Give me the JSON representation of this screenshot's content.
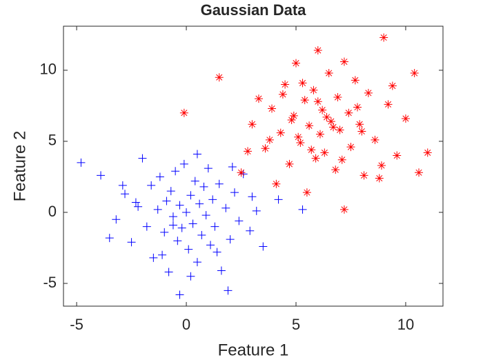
{
  "chart_data": {
    "type": "scatter",
    "title": "Gaussian Data",
    "x_label": "Feature 1",
    "y_label": "Feature 2",
    "xlim": [
      -5.6,
      11.7
    ],
    "ylim": [
      -6.6,
      13.1
    ],
    "xticks": [
      -5,
      0,
      5,
      10
    ],
    "yticks": [
      -5,
      0,
      5,
      10
    ],
    "grid": false,
    "series": [
      {
        "color": "#0000ff",
        "marker": "+",
        "x": [
          -4.8,
          -3.9,
          -3.2,
          -2.8,
          -2.5,
          -2.2,
          -2.0,
          -1.8,
          -1.6,
          -1.5,
          -1.3,
          -1.2,
          -1.0,
          -0.9,
          -0.8,
          -0.7,
          -0.6,
          -0.5,
          -0.4,
          -0.3,
          -0.2,
          -0.1,
          0.0,
          0.1,
          0.2,
          0.3,
          0.4,
          0.5,
          0.6,
          0.7,
          0.8,
          0.9,
          1.0,
          1.1,
          1.2,
          1.3,
          1.5,
          1.6,
          1.8,
          2.0,
          2.2,
          2.4,
          2.6,
          2.9,
          3.2,
          3.5,
          4.2,
          5.3,
          -0.3,
          1.9,
          -3.5,
          -2.9,
          -1.1,
          0.5,
          2.1,
          -0.6,
          1.4,
          -2.3,
          0.2,
          3.0
        ],
        "values": [
          3.5,
          2.6,
          -0.5,
          1.3,
          -2.1,
          0.4,
          3.8,
          -1.0,
          1.9,
          -3.2,
          0.2,
          2.5,
          -1.4,
          0.8,
          -4.2,
          1.5,
          -0.3,
          2.9,
          -2.0,
          0.5,
          -1.1,
          3.4,
          0.0,
          -2.6,
          1.2,
          -0.8,
          2.2,
          -3.5,
          0.6,
          -1.6,
          1.8,
          -0.2,
          3.1,
          -2.3,
          0.9,
          -1.0,
          2.0,
          -4.1,
          0.3,
          -1.9,
          1.4,
          -0.6,
          2.7,
          -1.3,
          0.1,
          -2.4,
          0.9,
          0.2,
          -5.8,
          -5.5,
          -1.8,
          1.9,
          -3.0,
          4.1,
          3.2,
          -0.9,
          -2.8,
          0.7,
          -4.5,
          1.1
        ]
      },
      {
        "color": "#ff0000",
        "marker": "*",
        "x": [
          -0.1,
          1.5,
          2.5,
          3.0,
          3.3,
          3.6,
          3.9,
          4.1,
          4.3,
          4.5,
          4.7,
          4.9,
          5.0,
          5.2,
          5.4,
          5.5,
          5.6,
          5.8,
          5.9,
          6.0,
          6.1,
          6.2,
          6.3,
          6.5,
          6.6,
          6.8,
          6.9,
          7.0,
          7.2,
          7.4,
          7.5,
          7.7,
          7.9,
          8.1,
          8.3,
          8.6,
          8.9,
          9.2,
          9.6,
          10.0,
          10.4,
          11.0,
          9.0,
          7.2,
          10.6,
          4.4,
          5.1,
          6.4,
          7.8,
          3.8,
          5.7,
          6.7,
          8.0,
          4.8,
          9.4,
          2.8,
          6.0,
          7.1,
          5.3,
          8.8
        ],
        "values": [
          7.0,
          9.5,
          2.8,
          6.2,
          8.0,
          4.5,
          7.3,
          2.0,
          5.6,
          9.0,
          3.4,
          6.8,
          10.5,
          4.9,
          7.9,
          1.4,
          6.1,
          8.6,
          3.8,
          11.4,
          5.5,
          7.2,
          4.2,
          9.8,
          6.4,
          3.0,
          8.1,
          5.8,
          0.2,
          7.0,
          4.6,
          9.3,
          6.2,
          2.6,
          8.4,
          5.1,
          3.3,
          7.6,
          4.0,
          6.6,
          9.8,
          4.2,
          12.3,
          10.6,
          2.8,
          8.3,
          5.3,
          6.7,
          7.4,
          5.1,
          4.4,
          6.0,
          5.7,
          6.5,
          8.9,
          4.3,
          7.8,
          3.7,
          9.1,
          2.4
        ]
      }
    ]
  }
}
